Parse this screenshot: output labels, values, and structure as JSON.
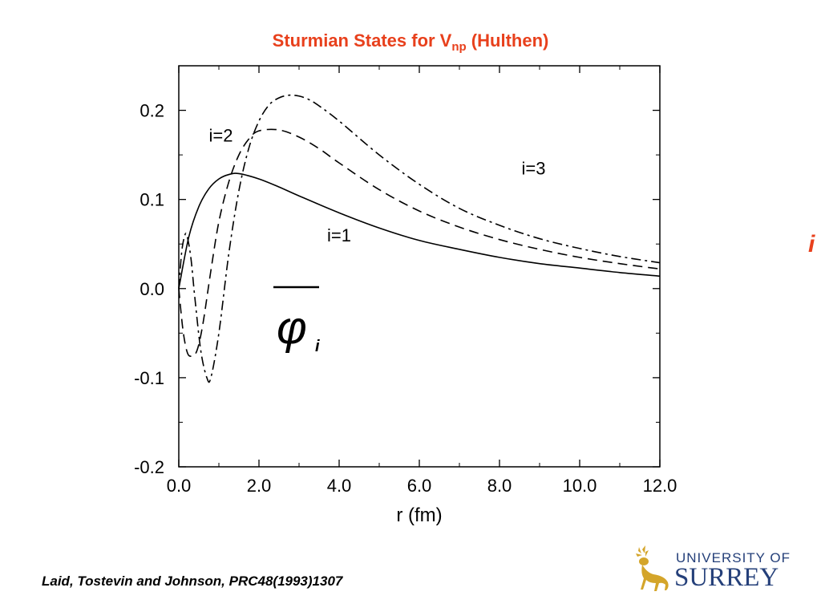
{
  "title": {
    "main": "Sturmian States for V",
    "subscript": "np",
    "suffix": " (Hulthen)"
  },
  "side_label": "i",
  "citation": "Laid, Tostevin and Johnson, PRC48(1993)1307",
  "logo": {
    "line1": "UNIVERSITY OF",
    "line2": "SURREY",
    "color": "#25407a",
    "emblem_color": "#d4a52a"
  },
  "colors": {
    "title": "#e8401c",
    "axes": "#000000"
  },
  "chart_data": {
    "type": "line",
    "xlabel": "r (fm)",
    "ylabel": "",
    "xlim": [
      0,
      12
    ],
    "ylim": [
      -0.2,
      0.25
    ],
    "x_ticks": [
      0,
      2,
      4,
      6,
      8,
      10,
      12
    ],
    "x_tick_labels": [
      "0.0",
      "2.0",
      "4.0",
      "6.0",
      "8.0",
      "10.0",
      "12.0"
    ],
    "y_ticks": [
      -0.2,
      -0.1,
      0.0,
      0.1,
      0.2
    ],
    "y_tick_labels": [
      "-0.2",
      "-0.1",
      "0.0",
      "0.1",
      "0.2"
    ],
    "grid": false,
    "symbol_label": {
      "main": "φ",
      "subscript": "i"
    },
    "annotations": [
      {
        "text": "i=2",
        "x": 0.75,
        "y": 0.165
      },
      {
        "text": "i=3",
        "x": 8.55,
        "y": 0.128
      },
      {
        "text": "i=1",
        "x": 3.7,
        "y": 0.053
      }
    ],
    "series": [
      {
        "name": "i=1",
        "style": "solid",
        "x": [
          0,
          0.25,
          0.5,
          0.75,
          1.0,
          1.25,
          1.5,
          2.0,
          2.5,
          3.0,
          4.0,
          5.0,
          6.0,
          7.0,
          8.0,
          9.0,
          10.0,
          11.0,
          12.0
        ],
        "y": [
          0.0,
          0.058,
          0.092,
          0.112,
          0.123,
          0.128,
          0.129,
          0.123,
          0.114,
          0.104,
          0.085,
          0.068,
          0.054,
          0.044,
          0.035,
          0.028,
          0.023,
          0.018,
          0.014
        ]
      },
      {
        "name": "i=2",
        "style": "dashed",
        "x": [
          0,
          0.1,
          0.2,
          0.3,
          0.45,
          0.6,
          0.8,
          1.0,
          1.25,
          1.5,
          1.75,
          2.0,
          2.5,
          3.0,
          3.5,
          4.0,
          5.0,
          6.0,
          7.0,
          8.0,
          9.0,
          10.0,
          11.0,
          12.0
        ],
        "y": [
          0.0,
          -0.045,
          -0.07,
          -0.076,
          -0.07,
          -0.04,
          0.02,
          0.075,
          0.12,
          0.15,
          0.168,
          0.177,
          0.178,
          0.17,
          0.157,
          0.141,
          0.111,
          0.087,
          0.069,
          0.055,
          0.044,
          0.035,
          0.028,
          0.022
        ]
      },
      {
        "name": "i=3",
        "style": "dashdot",
        "x": [
          0,
          0.07,
          0.14,
          0.2,
          0.3,
          0.4,
          0.55,
          0.7,
          0.8,
          1.0,
          1.25,
          1.5,
          1.75,
          2.0,
          2.25,
          2.5,
          2.75,
          3.0,
          3.25,
          3.5,
          4.0,
          5.0,
          6.0,
          7.0,
          8.0,
          9.0,
          10.0,
          11.0,
          12.0
        ],
        "y": [
          0.0,
          0.04,
          0.058,
          0.06,
          0.035,
          -0.01,
          -0.07,
          -0.1,
          -0.1,
          -0.05,
          0.04,
          0.11,
          0.158,
          0.188,
          0.206,
          0.214,
          0.217,
          0.216,
          0.212,
          0.205,
          0.188,
          0.15,
          0.117,
          0.09,
          0.071,
          0.056,
          0.045,
          0.036,
          0.029
        ]
      }
    ]
  }
}
